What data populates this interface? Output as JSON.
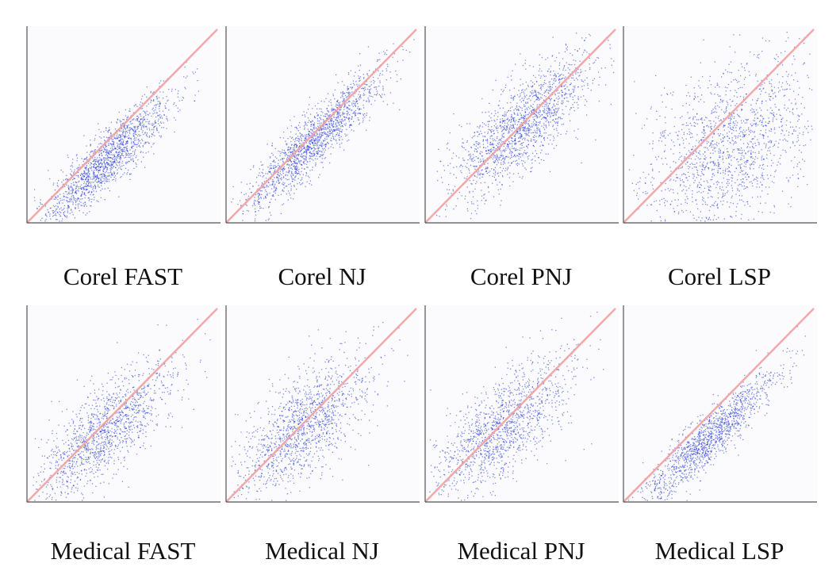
{
  "figure": {
    "colors": {
      "points": "#1a2fd0",
      "diagonal": "#f2a0a0",
      "axis": "#555555",
      "background": "#fbfbfd"
    }
  },
  "chart_data": [
    {
      "type": "scatter",
      "title": "Corel FAST",
      "diagonal": "y = x",
      "grid": false,
      "point_cloud": {
        "center": [
          0.42,
          0.36
        ],
        "spread_along": 0.24,
        "spread_across": 0.055,
        "offset": -0.03,
        "density": 1600
      }
    },
    {
      "type": "scatter",
      "title": "Corel NJ",
      "diagonal": "y = x",
      "grid": false,
      "point_cloud": {
        "center": [
          0.45,
          0.43
        ],
        "spread_along": 0.25,
        "spread_across": 0.055,
        "offset": -0.01,
        "density": 1600
      }
    },
    {
      "type": "scatter",
      "title": "Corel PNJ",
      "diagonal": "y = x",
      "grid": false,
      "point_cloud": {
        "center": [
          0.5,
          0.5
        ],
        "spread_along": 0.24,
        "spread_across": 0.09,
        "offset": 0.0,
        "density": 1600
      }
    },
    {
      "type": "scatter",
      "title": "Corel LSP",
      "diagonal": "y = x",
      "grid": false,
      "point_cloud": {
        "center": [
          0.55,
          0.38
        ],
        "spread_along": 0.28,
        "spread_across": 0.18,
        "offset": 0.0,
        "density": 1600
      }
    },
    {
      "type": "scatter",
      "title": "Medical FAST",
      "diagonal": "y = x",
      "grid": false,
      "point_cloud": {
        "center": [
          0.4,
          0.3
        ],
        "spread_along": 0.24,
        "spread_across": 0.09,
        "offset": 0.06,
        "density": 1400
      }
    },
    {
      "type": "scatter",
      "title": "Medical NJ",
      "diagonal": "y = x",
      "grid": false,
      "point_cloud": {
        "center": [
          0.4,
          0.32
        ],
        "spread_along": 0.24,
        "spread_across": 0.1,
        "offset": 0.07,
        "density": 1400
      }
    },
    {
      "type": "scatter",
      "title": "Medical PNJ",
      "diagonal": "y = x",
      "grid": false,
      "point_cloud": {
        "center": [
          0.4,
          0.33
        ],
        "spread_along": 0.25,
        "spread_across": 0.1,
        "offset": 0.05,
        "density": 1400
      }
    },
    {
      "type": "scatter",
      "title": "Medical LSP",
      "diagonal": "y = x",
      "grid": false,
      "point_cloud": {
        "center": [
          0.45,
          0.35
        ],
        "spread_along": 0.26,
        "spread_across": 0.05,
        "offset": -0.02,
        "density": 1400
      }
    }
  ]
}
